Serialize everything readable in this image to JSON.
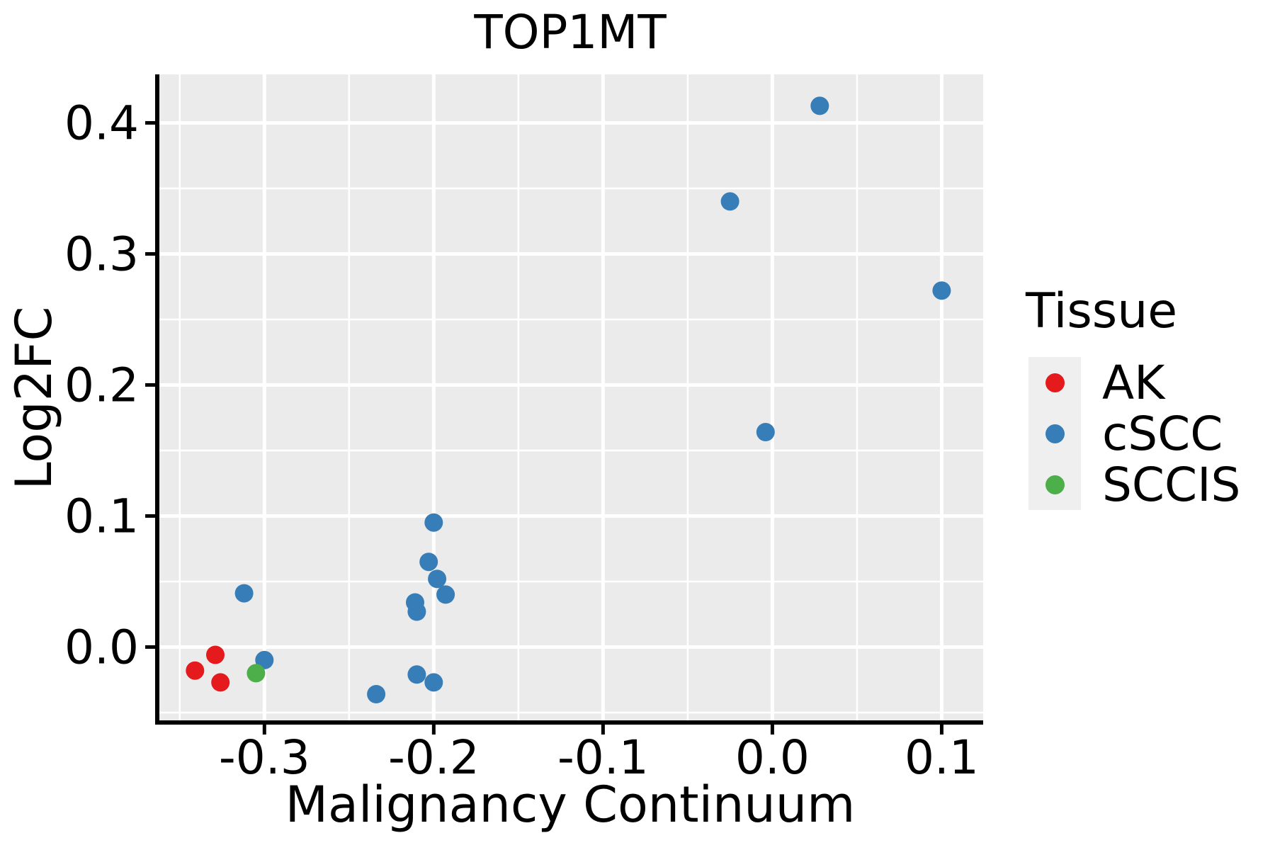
{
  "figure": {
    "background": "#ffffff",
    "panel_background": "#EBEBEB",
    "grid_color": "#FFFFFF",
    "axis_color": "#000000",
    "text_color": "#000000"
  },
  "chart_data": {
    "type": "scatter",
    "title": "TOP1MT",
    "xlabel": "Malignancy Continuum",
    "ylabel": "Log2FC",
    "xlim": [
      -0.3633,
      0.1245
    ],
    "ylim": [
      -0.0576,
      0.437
    ],
    "grid": "major white + minor white on gray panel",
    "legend_position": "right",
    "point_radius_px": 13,
    "x_ticks": {
      "values": [
        -0.3,
        -0.2,
        -0.1,
        0.0,
        0.1
      ],
      "labels": [
        "-0.3",
        "-0.2",
        "-0.1",
        "0.0",
        "0.1"
      ],
      "minor": [
        -0.35,
        -0.25,
        -0.15,
        -0.05,
        0.05
      ]
    },
    "y_ticks": {
      "values": [
        0.0,
        0.1,
        0.2,
        0.3,
        0.4
      ],
      "labels": [
        "0.0",
        "0.1",
        "0.2",
        "0.3",
        "0.4"
      ],
      "minor": [
        -0.05,
        0.05,
        0.15,
        0.25,
        0.35
      ]
    },
    "series": [
      {
        "name": "AK",
        "color": "#E41A1C",
        "points": [
          [
            -0.329,
            -0.006
          ],
          [
            -0.341,
            -0.018
          ],
          [
            -0.326,
            -0.027
          ]
        ]
      },
      {
        "name": "cSCC",
        "color": "#377EB8",
        "points": [
          [
            -0.312,
            0.041
          ],
          [
            -0.3,
            -0.01
          ],
          [
            -0.234,
            -0.036
          ],
          [
            -0.21,
            -0.021
          ],
          [
            -0.2,
            -0.027
          ],
          [
            -0.211,
            0.034
          ],
          [
            -0.21,
            0.027
          ],
          [
            -0.203,
            0.065
          ],
          [
            -0.198,
            0.052
          ],
          [
            -0.193,
            0.04
          ],
          [
            -0.2,
            0.095
          ],
          [
            -0.025,
            0.34
          ],
          [
            -0.004,
            0.164
          ],
          [
            0.028,
            0.413
          ],
          [
            0.1,
            0.272
          ]
        ]
      },
      {
        "name": "SCCIS",
        "color": "#4DAF4A",
        "points": [
          [
            -0.305,
            -0.02
          ]
        ]
      }
    ]
  },
  "legend": {
    "title": "Tissue",
    "items": [
      {
        "label": "AK",
        "color": "#E41A1C"
      },
      {
        "label": "cSCC",
        "color": "#377EB8"
      },
      {
        "label": "SCCIS",
        "color": "#4DAF4A"
      }
    ]
  }
}
